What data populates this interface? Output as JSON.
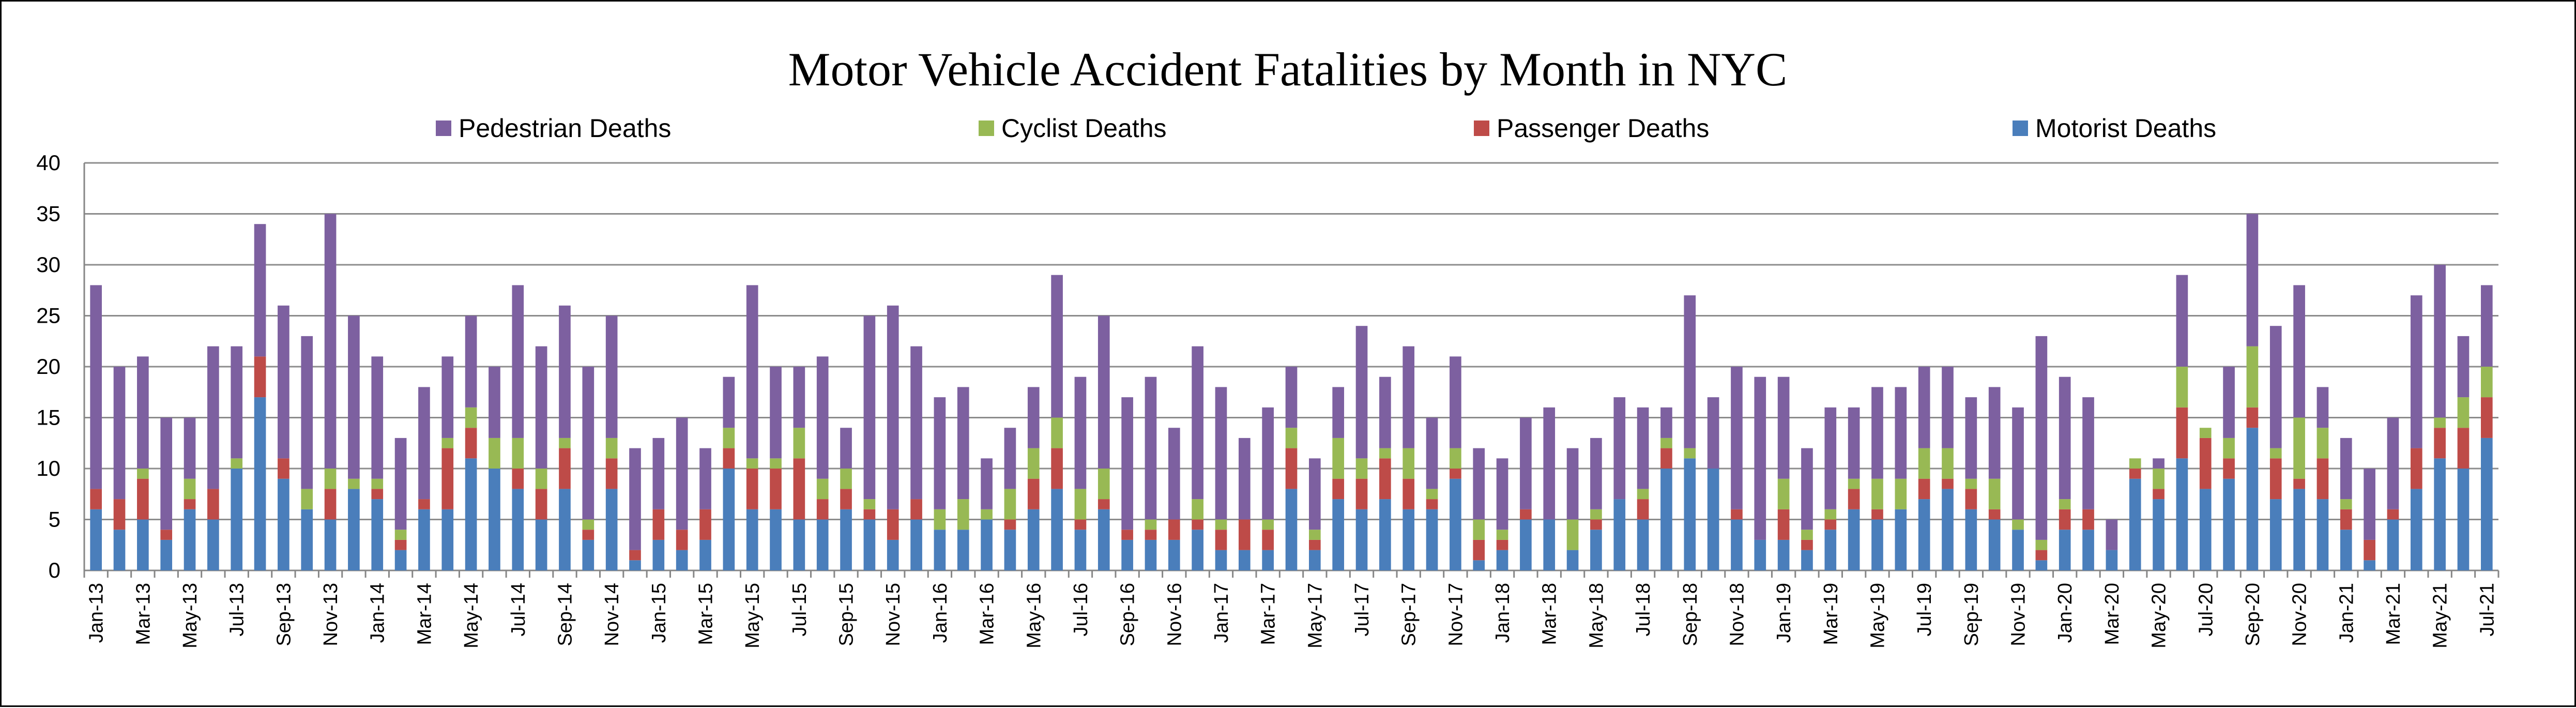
{
  "chart_data": {
    "type": "bar",
    "stacked": true,
    "title": "Motor Vehicle Accident Fatalities by Month in NYC",
    "xlabel": "",
    "ylabel": "",
    "ylim": [
      0,
      40
    ],
    "yticks": [
      0,
      5,
      10,
      15,
      20,
      25,
      30,
      35,
      40
    ],
    "grid": true,
    "legend_position": "top",
    "legend": [
      "Pedestrian Deaths",
      "Cyclist Deaths",
      "Passenger Deaths",
      "Motorist Deaths"
    ],
    "categories": [
      "Jan-13",
      "Feb-13",
      "Mar-13",
      "Apr-13",
      "May-13",
      "Jun-13",
      "Jul-13",
      "Aug-13",
      "Sep-13",
      "Oct-13",
      "Nov-13",
      "Dec-13",
      "Jan-14",
      "Feb-14",
      "Mar-14",
      "Apr-14",
      "May-14",
      "Jun-14",
      "Jul-14",
      "Aug-14",
      "Sep-14",
      "Oct-14",
      "Nov-14",
      "Dec-14",
      "Jan-15",
      "Feb-15",
      "Mar-15",
      "Apr-15",
      "May-15",
      "Jun-15",
      "Jul-15",
      "Aug-15",
      "Sep-15",
      "Oct-15",
      "Nov-15",
      "Dec-15",
      "Jan-16",
      "Feb-16",
      "Mar-16",
      "Apr-16",
      "May-16",
      "Jun-16",
      "Jul-16",
      "Aug-16",
      "Sep-16",
      "Oct-16",
      "Nov-16",
      "Dec-16",
      "Jan-17",
      "Feb-17",
      "Mar-17",
      "Apr-17",
      "May-17",
      "Jun-17",
      "Jul-17",
      "Aug-17",
      "Sep-17",
      "Oct-17",
      "Nov-17",
      "Dec-17",
      "Jan-18",
      "Feb-18",
      "Mar-18",
      "Apr-18",
      "May-18",
      "Jun-18",
      "Jul-18",
      "Aug-18",
      "Sep-18",
      "Oct-18",
      "Nov-18",
      "Dec-18",
      "Jan-19",
      "Feb-19",
      "Mar-19",
      "Apr-19",
      "May-19",
      "Jun-19",
      "Jul-19",
      "Aug-19",
      "Sep-19",
      "Oct-19",
      "Nov-19",
      "Dec-19",
      "Jan-20",
      "Feb-20",
      "Mar-20",
      "Apr-20",
      "May-20",
      "Jun-20",
      "Jul-20",
      "Aug-20",
      "Sep-20",
      "Oct-20",
      "Nov-20",
      "Dec-20",
      "Jan-21",
      "Feb-21",
      "Mar-21",
      "Apr-21",
      "May-21",
      "Jun-21",
      "Jul-21"
    ],
    "series": [
      {
        "name": "Motorist Deaths",
        "color": "#4A7EBB",
        "values": [
          6,
          4,
          5,
          3,
          6,
          5,
          10,
          17,
          9,
          6,
          5,
          8,
          7,
          2,
          6,
          6,
          11,
          10,
          8,
          5,
          8,
          3,
          8,
          1,
          3,
          2,
          3,
          10,
          6,
          6,
          5,
          5,
          6,
          5,
          3,
          5,
          4,
          4,
          5,
          4,
          6,
          8,
          4,
          6,
          3,
          3,
          3,
          4,
          2,
          2,
          2,
          8,
          2,
          7,
          6,
          7,
          6,
          6,
          9,
          1,
          2,
          5,
          5,
          2,
          4,
          7,
          5,
          10,
          11,
          10,
          5,
          3,
          3,
          2,
          4,
          6,
          5,
          6,
          7,
          8,
          6,
          5,
          4,
          1,
          4,
          4,
          2,
          9,
          7,
          11,
          8,
          9,
          14,
          7,
          8,
          7,
          4,
          1,
          5,
          8,
          11,
          10,
          13
        ]
      },
      {
        "name": "Passenger Deaths",
        "color": "#BE4B48",
        "values": [
          2,
          3,
          4,
          1,
          1,
          3,
          0,
          4,
          2,
          0,
          3,
          0,
          1,
          1,
          1,
          6,
          3,
          0,
          2,
          3,
          4,
          1,
          3,
          1,
          3,
          2,
          3,
          2,
          4,
          4,
          6,
          2,
          2,
          1,
          3,
          2,
          0,
          0,
          0,
          1,
          3,
          4,
          1,
          1,
          1,
          1,
          2,
          1,
          2,
          3,
          2,
          4,
          1,
          2,
          3,
          4,
          3,
          1,
          1,
          2,
          1,
          1,
          0,
          0,
          1,
          0,
          2,
          2,
          0,
          0,
          1,
          0,
          3,
          1,
          1,
          2,
          1,
          0,
          2,
          1,
          2,
          1,
          0,
          1,
          2,
          2,
          0,
          1,
          1,
          5,
          5,
          2,
          2,
          4,
          1,
          4,
          2,
          2,
          1,
          4,
          3,
          4,
          4
        ]
      },
      {
        "name": "Cyclist Deaths",
        "color": "#98B954",
        "values": [
          0,
          0,
          1,
          0,
          2,
          0,
          1,
          0,
          0,
          2,
          2,
          1,
          1,
          1,
          0,
          1,
          2,
          3,
          3,
          2,
          1,
          1,
          2,
          0,
          0,
          0,
          0,
          2,
          1,
          1,
          3,
          2,
          2,
          1,
          0,
          0,
          2,
          3,
          1,
          3,
          3,
          3,
          3,
          3,
          0,
          1,
          0,
          2,
          1,
          0,
          1,
          2,
          1,
          4,
          2,
          1,
          3,
          1,
          2,
          2,
          1,
          0,
          0,
          3,
          1,
          0,
          1,
          1,
          1,
          0,
          0,
          0,
          3,
          1,
          1,
          1,
          3,
          3,
          3,
          3,
          1,
          3,
          1,
          1,
          1,
          0,
          0,
          1,
          2,
          4,
          1,
          2,
          6,
          1,
          6,
          3,
          1,
          0,
          0,
          0,
          1,
          3,
          3
        ]
      },
      {
        "name": "Pedestrian Deaths",
        "color": "#7D60A0",
        "values": [
          20,
          13,
          11,
          11,
          6,
          14,
          11,
          13,
          15,
          15,
          25,
          16,
          12,
          9,
          11,
          8,
          9,
          7,
          15,
          12,
          13,
          15,
          12,
          10,
          7,
          11,
          6,
          5,
          17,
          9,
          6,
          12,
          4,
          18,
          20,
          15,
          11,
          11,
          5,
          6,
          6,
          14,
          11,
          15,
          13,
          14,
          9,
          15,
          13,
          8,
          11,
          6,
          7,
          5,
          13,
          7,
          10,
          7,
          9,
          7,
          7,
          9,
          11,
          7,
          7,
          10,
          8,
          3,
          15,
          7,
          14,
          16,
          10,
          8,
          10,
          7,
          9,
          9,
          8,
          8,
          8,
          9,
          11,
          20,
          12,
          11,
          3,
          0,
          1,
          9,
          0,
          7,
          13,
          12,
          13,
          4,
          6,
          7,
          9,
          15,
          15,
          6,
          8
        ]
      }
    ]
  }
}
